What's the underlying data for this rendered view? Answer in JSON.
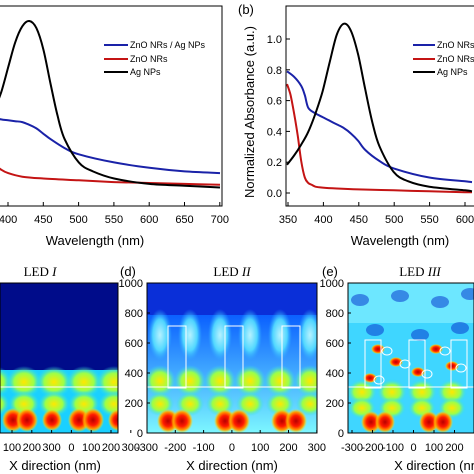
{
  "chart_data": [
    {
      "panel": "",
      "type": "line",
      "xlabel": "Wavelength (nm)",
      "ylabel": "",
      "xlim": [
        380,
        700
      ],
      "ylim": [
        0,
        1.05
      ],
      "xticks": [
        "400",
        "450",
        "500",
        "550",
        "600",
        "650",
        "700"
      ],
      "yticks": [],
      "series": [
        {
          "name": "ZnO NRs / Ag NPs",
          "color": "#1a22a8",
          "x": [
            380,
            390,
            400,
            410,
            420,
            430,
            440,
            450,
            460,
            480,
            500,
            550,
            600,
            650,
            700
          ],
          "y": [
            0.46,
            0.45,
            0.445,
            0.44,
            0.435,
            0.42,
            0.4,
            0.37,
            0.34,
            0.29,
            0.255,
            0.21,
            0.18,
            0.16,
            0.15
          ]
        },
        {
          "name": "ZnO NRs",
          "color": "#c41414",
          "x": [
            380,
            390,
            400,
            420,
            450,
            500,
            550,
            600,
            650,
            700
          ],
          "y": [
            0.2,
            0.17,
            0.15,
            0.13,
            0.12,
            0.11,
            0.1,
            0.095,
            0.09,
            0.085
          ]
        },
        {
          "name": "Ag NPs",
          "color": "#000000",
          "x": [
            380,
            390,
            400,
            410,
            420,
            430,
            440,
            450,
            460,
            470,
            480,
            500,
            520,
            550,
            600,
            650,
            700
          ],
          "y": [
            0.5,
            0.6,
            0.74,
            0.88,
            0.97,
            1.0,
            0.96,
            0.84,
            0.65,
            0.47,
            0.34,
            0.21,
            0.16,
            0.12,
            0.09,
            0.08,
            0.07
          ]
        }
      ]
    },
    {
      "panel": "(b)",
      "type": "line",
      "xlabel": "Wavelength (nm)",
      "ylabel": "Normalized Absorbance (a.u.)",
      "xlim": [
        350,
        610
      ],
      "ylim": [
        0,
        1.07
      ],
      "xticks": [
        "350",
        "400",
        "450",
        "500",
        "550",
        "600"
      ],
      "yticks": [
        "0.0",
        "0.2",
        "0.4",
        "0.6",
        "0.8",
        "1.0"
      ],
      "series": [
        {
          "name": "ZnO NRs / Ag NPs",
          "color": "#1a22a8",
          "x": [
            350,
            360,
            370,
            375,
            380,
            390,
            400,
            410,
            420,
            430,
            440,
            450,
            460,
            480,
            500,
            550,
            600,
            610
          ],
          "y": [
            0.73,
            0.7,
            0.65,
            0.6,
            0.53,
            0.5,
            0.48,
            0.46,
            0.44,
            0.42,
            0.39,
            0.35,
            0.3,
            0.24,
            0.2,
            0.15,
            0.13,
            0.125
          ]
        },
        {
          "name": "ZnO NRs",
          "color": "#c41414",
          "x": [
            350,
            355,
            360,
            365,
            370,
            375,
            380,
            385,
            390,
            400,
            420,
            450,
            500,
            550,
            600,
            610
          ],
          "y": [
            0.66,
            0.6,
            0.5,
            0.38,
            0.24,
            0.15,
            0.12,
            0.11,
            0.1,
            0.095,
            0.09,
            0.085,
            0.08,
            0.075,
            0.07,
            0.07
          ]
        },
        {
          "name": "Ag NPs",
          "color": "#000000",
          "x": [
            350,
            360,
            370,
            380,
            390,
            400,
            410,
            420,
            430,
            440,
            450,
            460,
            470,
            480,
            500,
            520,
            550,
            600,
            610
          ],
          "y": [
            0.22,
            0.27,
            0.33,
            0.4,
            0.5,
            0.62,
            0.78,
            0.93,
            0.99,
            0.95,
            0.82,
            0.63,
            0.45,
            0.32,
            0.18,
            0.13,
            0.1,
            0.08,
            0.075
          ]
        }
      ]
    },
    {
      "panel": "",
      "type": "heatmap",
      "title": "LED I",
      "xlabel": "X direction (nm)",
      "xticks": [
        "100",
        "200",
        "300",
        "0",
        "100",
        "200",
        "300"
      ]
    },
    {
      "panel": "(d)",
      "type": "heatmap",
      "title": "LED II",
      "xlabel": "X direction (nm)",
      "ylabel": "",
      "xticks": [
        "-300",
        "-200",
        "-100",
        "0",
        "100",
        "200",
        "300"
      ],
      "yticks": [
        "0",
        "200",
        "400",
        "600",
        "800",
        "1000"
      ]
    },
    {
      "panel": "(e)",
      "type": "heatmap",
      "title": "LED III",
      "xlabel": "X direction (nm)",
      "xticks": [
        "-300",
        "-200",
        "-100",
        "0",
        "100",
        "200"
      ],
      "yticks": [
        "0",
        "200",
        "400",
        "600",
        "800",
        "1000"
      ]
    }
  ],
  "titles": {
    "c_prefix": "LED ",
    "c_roman": "I",
    "d_prefix": "LED ",
    "d_roman": "II",
    "e_prefix": "LED ",
    "e_roman": "III"
  }
}
